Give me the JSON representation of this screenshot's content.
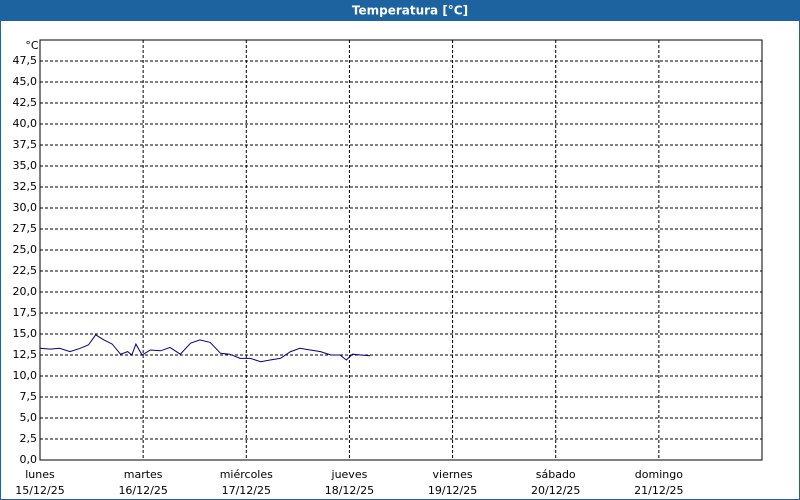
{
  "chart_data": {
    "type": "line",
    "title": "Temperatura [°C]",
    "y_unit": "°C",
    "x": [
      0,
      0.1,
      0.19,
      0.29,
      0.39,
      0.47,
      0.54,
      0.62,
      0.7,
      0.78,
      0.85,
      0.89,
      0.93,
      0.99,
      1.07,
      1.17,
      1.26,
      1.36,
      1.46,
      1.55,
      1.65,
      1.75,
      1.84,
      1.94,
      2.04,
      2.14,
      2.23,
      2.33,
      2.43,
      2.52,
      2.62,
      2.72,
      2.82,
      2.91,
      2.97,
      3.03,
      3.11,
      3.2
    ],
    "series": [
      {
        "name": "Temperatura",
        "color": "#00008b",
        "values": [
          13.3,
          13.2,
          13.3,
          12.9,
          13.3,
          13.7,
          14.9,
          14.3,
          13.8,
          12.6,
          12.9,
          12.5,
          13.8,
          12.5,
          13.1,
          13.0,
          13.4,
          12.6,
          13.9,
          14.3,
          14.0,
          12.7,
          12.6,
          12.1,
          12.1,
          11.7,
          11.9,
          12.1,
          12.9,
          13.3,
          13.1,
          12.9,
          12.5,
          12.5,
          11.9,
          12.6,
          12.5,
          12.4
        ]
      }
    ],
    "xlim": [
      0,
      7
    ],
    "xticks": [
      {
        "value": 0,
        "label": "lunes"
      },
      {
        "value": 1,
        "label": "martes"
      },
      {
        "value": 2,
        "label": "miércoles"
      },
      {
        "value": 3,
        "label": "jueves"
      },
      {
        "value": 4,
        "label": "viernes"
      },
      {
        "value": 5,
        "label": "sábado"
      },
      {
        "value": 6,
        "label": "domingo"
      }
    ],
    "x_dates": [
      "15/12/25",
      "16/12/25",
      "17/12/25",
      "18/12/25",
      "19/12/25",
      "20/12/25",
      "21/12/25"
    ],
    "ylim": [
      0,
      50
    ],
    "yticks": [
      {
        "value": 0,
        "label": "0,0"
      },
      {
        "value": 2.5,
        "label": "2,5"
      },
      {
        "value": 5,
        "label": "5,0"
      },
      {
        "value": 7.5,
        "label": "7,5"
      },
      {
        "value": 10,
        "label": "10,0"
      },
      {
        "value": 12.5,
        "label": "12,5"
      },
      {
        "value": 15,
        "label": "15,0"
      },
      {
        "value": 17.5,
        "label": "17,5"
      },
      {
        "value": 20,
        "label": "20,0"
      },
      {
        "value": 22.5,
        "label": "22,5"
      },
      {
        "value": 25,
        "label": "25,0"
      },
      {
        "value": 27.5,
        "label": "27,5"
      },
      {
        "value": 30,
        "label": "30,0"
      },
      {
        "value": 32.5,
        "label": "32,5"
      },
      {
        "value": 35,
        "label": "35,0"
      },
      {
        "value": 37.5,
        "label": "37,5"
      },
      {
        "value": 40,
        "label": "40,0"
      },
      {
        "value": 42.5,
        "label": "42,5"
      },
      {
        "value": 45,
        "label": "45,0"
      },
      {
        "value": 47.5,
        "label": "47,5"
      }
    ],
    "grid": true
  }
}
